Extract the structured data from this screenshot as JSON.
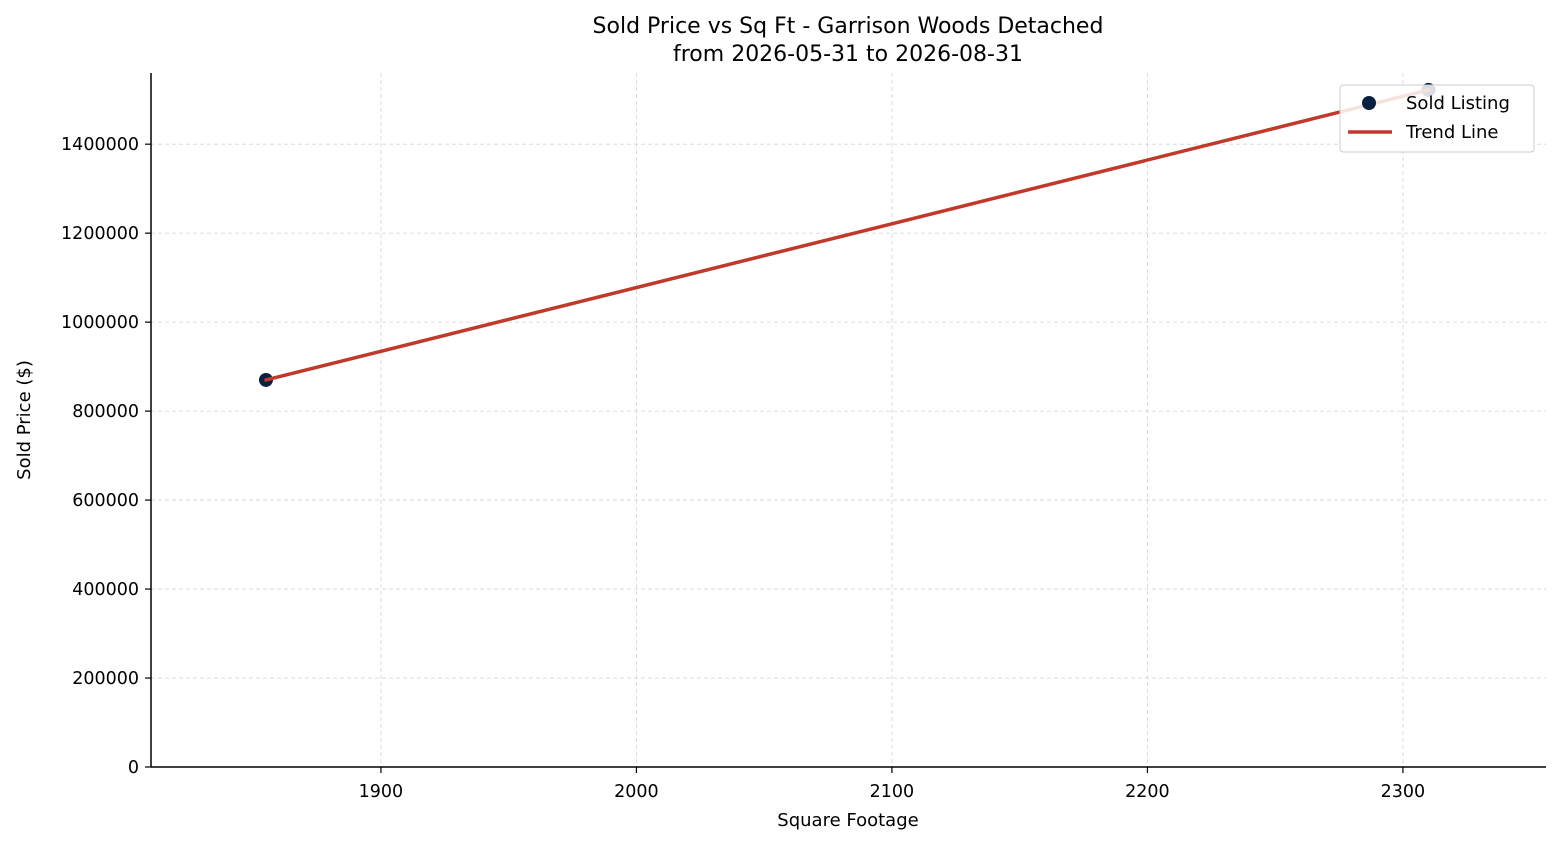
{
  "chart_data": {
    "type": "scatter",
    "title": "Sold Price vs Sq Ft - Garrison Woods Detached",
    "subtitle": "from 2026-05-31 to 2026-08-31",
    "xlabel": "Square Footage",
    "ylabel": "Sold Price ($)",
    "xlim": [
      1810,
      2356
    ],
    "ylim": [
      0,
      1560000
    ],
    "x_ticks": [
      1900,
      2000,
      2100,
      2200,
      2300
    ],
    "y_ticks": [
      0,
      200000,
      400000,
      600000,
      800000,
      1000000,
      1200000,
      1400000
    ],
    "x_tick_labels": [
      "1900",
      "2000",
      "2100",
      "2200",
      "2300"
    ],
    "y_tick_labels": [
      "0",
      "200000",
      "400000",
      "600000",
      "800000",
      "1000000",
      "1200000",
      "1400000"
    ],
    "grid": true,
    "legend_position": "top-right",
    "series": [
      {
        "name": "Sold Listing",
        "kind": "scatter",
        "color": "#0b1f3f",
        "points": [
          {
            "x": 1855,
            "y": 870000
          },
          {
            "x": 2310,
            "y": 1522000
          }
        ]
      },
      {
        "name": "Trend Line",
        "kind": "line",
        "color": "#c0392b",
        "points": [
          {
            "x": 1855,
            "y": 870000
          },
          {
            "x": 2310,
            "y": 1522000
          }
        ]
      }
    ]
  }
}
